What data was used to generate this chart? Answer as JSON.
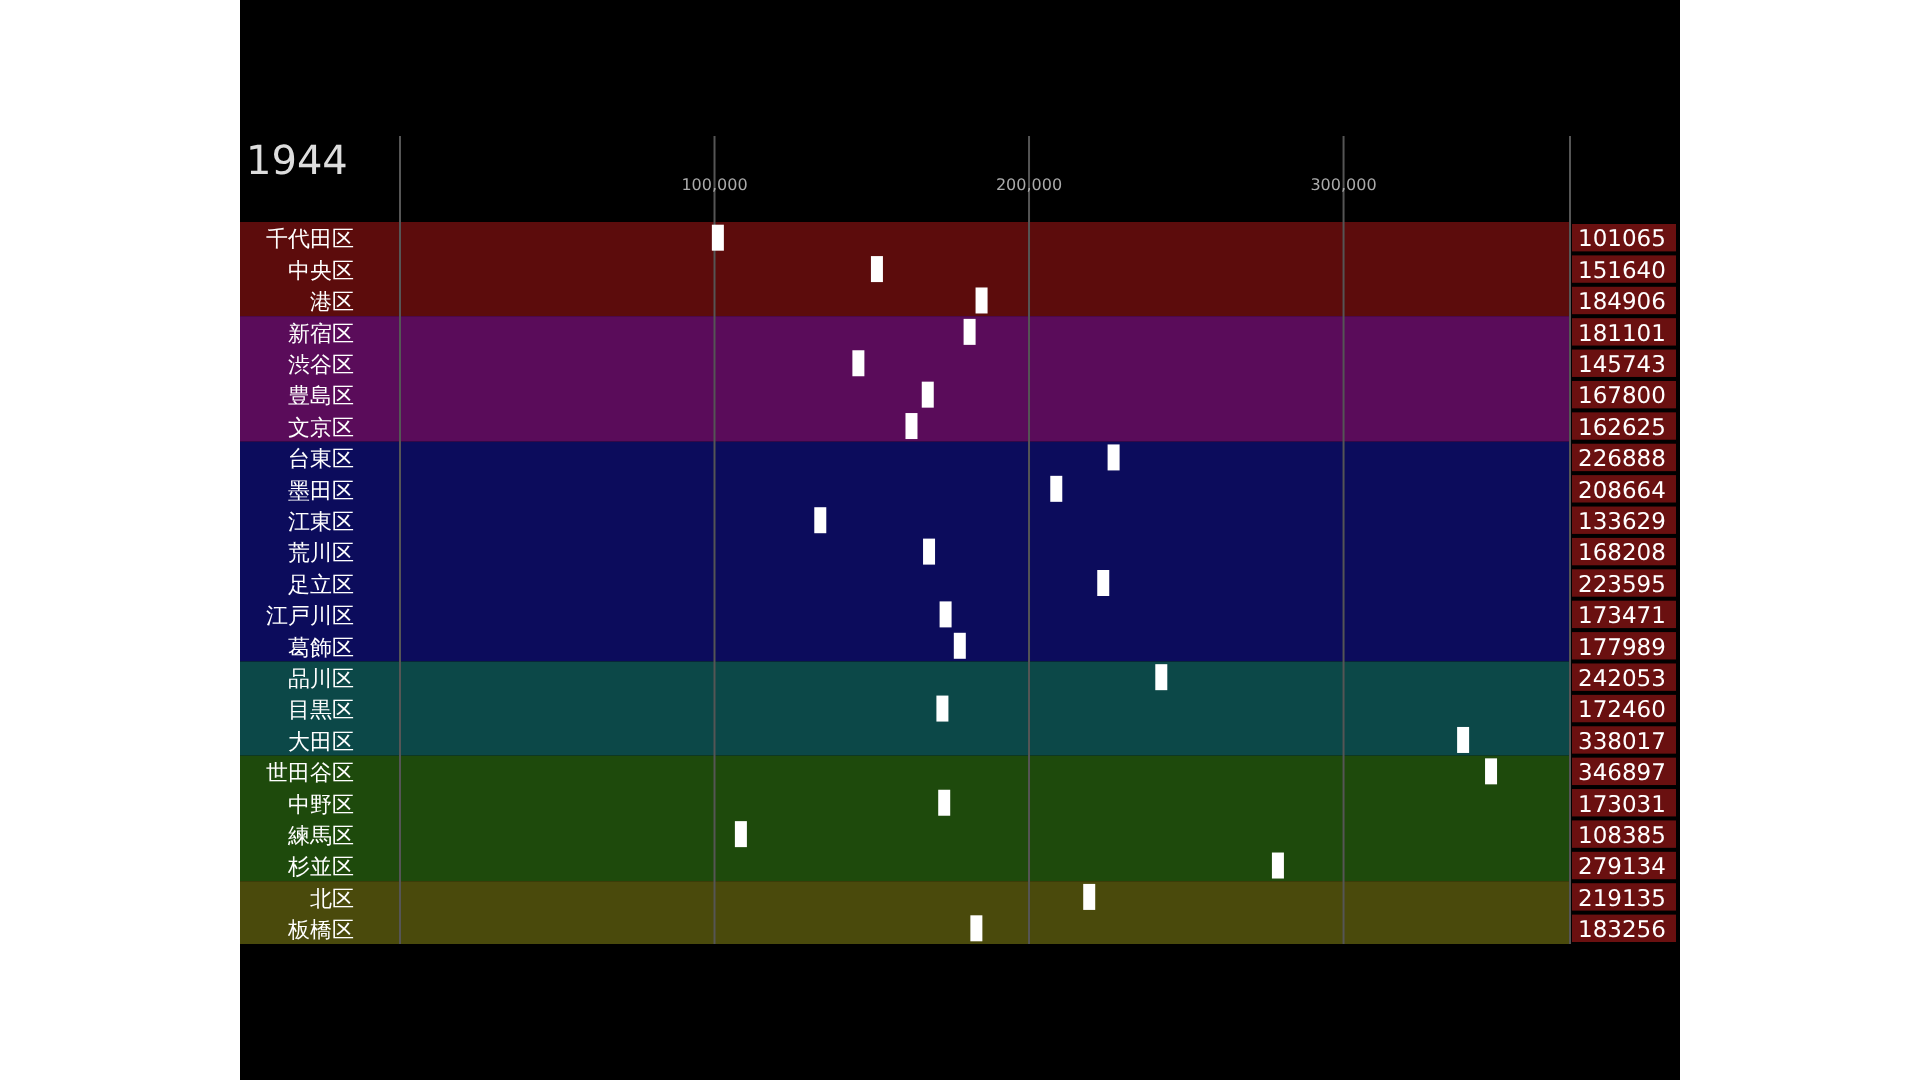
{
  "chart_data": {
    "type": "scatter",
    "orientation": "horizontal",
    "title": "1944",
    "marker": "square",
    "grid": "x",
    "data_labels": true,
    "categories": [
      "千代田区",
      "中央区",
      "港区",
      "新宿区",
      "渋谷区",
      "豊島区",
      "文京区",
      "台東区",
      "墨田区",
      "江東区",
      "荒川区",
      "足立区",
      "江戸川区",
      "葛飾区",
      "品川区",
      "目黒区",
      "大田区",
      "世田谷区",
      "中野区",
      "練馬区",
      "杉並区",
      "北区",
      "板橋区"
    ],
    "series": [
      {
        "color": "#ffffff",
        "values": [
          101065,
          151640,
          184906,
          181101,
          145743,
          167800,
          162625,
          226888,
          208664,
          133629,
          168208,
          223595,
          173471,
          177989,
          242053,
          172460,
          338017,
          346897,
          173031,
          108385,
          279134,
          219135,
          183256
        ]
      }
    ],
    "xlim": [
      0,
      372000
    ],
    "xticks": [
      {
        "value": 0,
        "label": null
      },
      {
        "value": 100000,
        "label": "100,000"
      },
      {
        "value": 200000,
        "label": "200,000"
      },
      {
        "value": 300000,
        "label": "300,000"
      }
    ],
    "bands": [
      {
        "axis": "y",
        "from": "千代田区",
        "to": "港区",
        "color": "#5c0c0c"
      },
      {
        "axis": "y",
        "from": "新宿区",
        "to": "文京区",
        "color": "#5a0c5a"
      },
      {
        "axis": "y",
        "from": "台東区",
        "to": "葛飾区",
        "color": "#0c0c5c"
      },
      {
        "axis": "y",
        "from": "品川区",
        "to": "大田区",
        "color": "#0c4848"
      },
      {
        "axis": "y",
        "from": "世田谷区",
        "to": "杉並区",
        "color": "#1e4a0c"
      },
      {
        "axis": "y",
        "from": "北区",
        "to": "板橋区",
        "color": "#4a4a0c"
      }
    ]
  }
}
